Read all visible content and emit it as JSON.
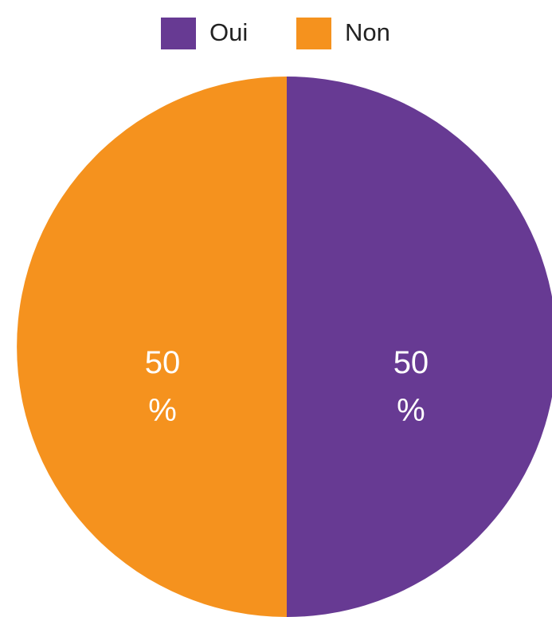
{
  "chart_data": {
    "type": "pie",
    "categories": [
      "Oui",
      "Non"
    ],
    "values": [
      50,
      50
    ],
    "value_labels": [
      "50 %",
      "50 %"
    ],
    "colors": [
      "#673a93",
      "#f5921e"
    ],
    "legend": "top"
  }
}
